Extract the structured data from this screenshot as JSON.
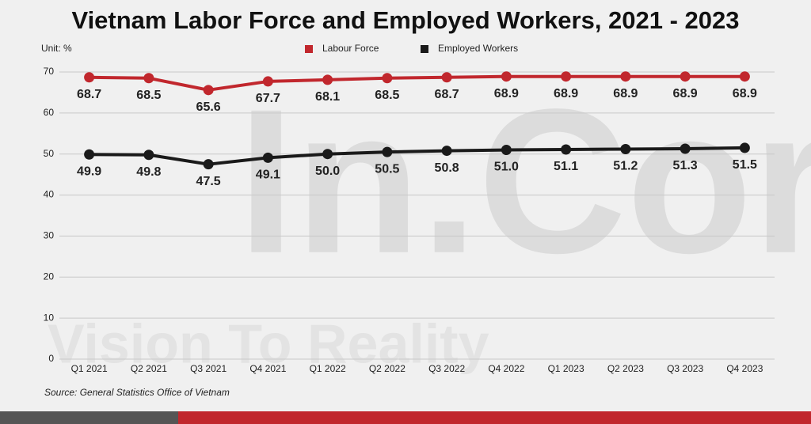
{
  "chart_data": {
    "type": "line",
    "title": "Vietnam Labor Force and Employed Workers, 2021 - 2023",
    "unit_label": "Unit: %",
    "source": "Source: General Statistics Office of Vietnam",
    "watermark": "In.Corp",
    "watermark_tagline": "Vision To Reality",
    "categories": [
      "Q1 2021",
      "Q2 2021",
      "Q3 2021",
      "Q4 2021",
      "Q1 2022",
      "Q2 2022",
      "Q3 2022",
      "Q4 2022",
      "Q1 2023",
      "Q2 2023",
      "Q3 2023",
      "Q4 2023"
    ],
    "series": [
      {
        "name": "Labour Force",
        "color": "#c1272d",
        "values": [
          68.7,
          68.5,
          65.6,
          67.7,
          68.1,
          68.5,
          68.7,
          68.9,
          68.9,
          68.9,
          68.9,
          68.9
        ]
      },
      {
        "name": "Employed Workers",
        "color": "#1a1a1a",
        "values": [
          49.9,
          49.8,
          47.5,
          49.1,
          50.0,
          50.5,
          50.8,
          51.0,
          51.1,
          51.2,
          51.3,
          51.5
        ],
        "value_labels": [
          "49.9",
          "49.8",
          "47.5",
          "49.1",
          "50.0",
          "50.5",
          "50.8",
          "51.0",
          "51.1",
          "51.2",
          "51.3",
          "51.5"
        ]
      }
    ],
    "ylim": [
      0,
      70
    ],
    "yticks": [
      0,
      10,
      20,
      30,
      40,
      50,
      60,
      70
    ],
    "grid": true
  }
}
